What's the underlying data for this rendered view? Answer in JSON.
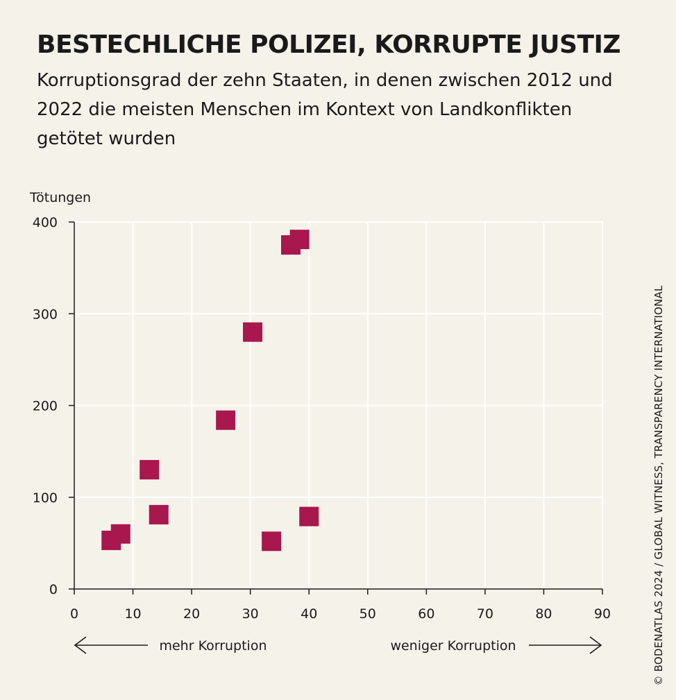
{
  "header": {
    "title": "BESTECHLICHE POLIZEI, KORRUPTE JUSTIZ",
    "subtitle": "Korruptionsgrad der zehn Staaten, in denen zwischen 2012 und 2022 die meisten Menschen im Kontext von Landkonflikten getötet wurden"
  },
  "source": "© BODENATLAS 2024 / GLOBAL WITNESS, TRANSPARENCY INTERNATIONAL",
  "colors": {
    "background": "#f5f2ea",
    "marker": "#a8174d",
    "axis": "#1a1a1a",
    "grid": "#ffffff"
  },
  "chart_data": {
    "type": "scatter",
    "ylabel": "Tötungen",
    "xlabel": "",
    "xlim": [
      0,
      90
    ],
    "ylim": [
      0,
      400
    ],
    "xticks": [
      0,
      10,
      20,
      30,
      40,
      50,
      60,
      70,
      80,
      90
    ],
    "yticks": [
      0,
      100,
      200,
      300,
      400
    ],
    "grid": true,
    "arrow_left_label": "mehr Korruption",
    "arrow_right_label": "weniger Korruption",
    "points": [
      {
        "x": 6.3,
        "y": 53
      },
      {
        "x": 7.9,
        "y": 60
      },
      {
        "x": 12.8,
        "y": 130
      },
      {
        "x": 14.4,
        "y": 81
      },
      {
        "x": 25.8,
        "y": 184
      },
      {
        "x": 30.4,
        "y": 280
      },
      {
        "x": 33.6,
        "y": 52
      },
      {
        "x": 36.9,
        "y": 375
      },
      {
        "x": 38.4,
        "y": 381
      },
      {
        "x": 40.0,
        "y": 79
      }
    ]
  }
}
